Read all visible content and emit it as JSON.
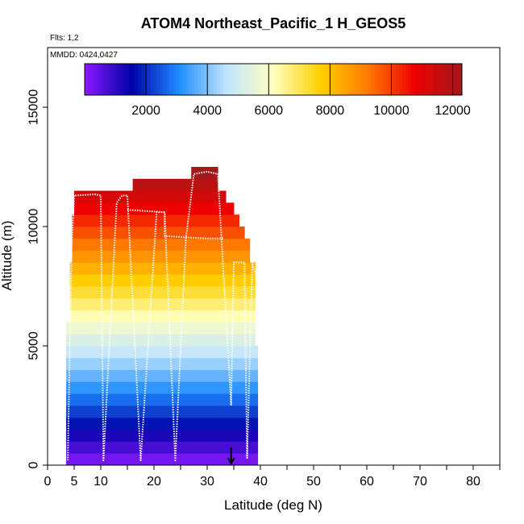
{
  "chart_data": {
    "type": "heatmap",
    "title": "ATOM4 Northeast_Pacific_1 H_GEOS5",
    "flights_label": "Flts: 1,2",
    "dates_label": "MMDD: 0424,0427",
    "xlabel": "Latitude (deg N)",
    "ylabel": "Altitude (m)",
    "xlim": [
      0,
      85
    ],
    "ylim": [
      0,
      17500
    ],
    "x_ticks": [
      0,
      5,
      10,
      20,
      30,
      40,
      50,
      60,
      70,
      80
    ],
    "x_tick_labels": [
      "0",
      "5",
      "10",
      "20",
      "30",
      "40",
      "50",
      "60",
      "70",
      "80"
    ],
    "y_ticks": [
      0,
      5000,
      10000,
      15000
    ],
    "y_tick_labels": [
      "0",
      "5000",
      "10000",
      "15000"
    ],
    "grid": false,
    "colorbar": {
      "min": 0,
      "max": 12300,
      "ticks": [
        2000,
        4000,
        6000,
        8000,
        10000,
        12000
      ],
      "tick_labels": [
        "2000",
        "4000",
        "6000",
        "8000",
        "10000",
        "12000"
      ],
      "stops": [
        "#8c1aff",
        "#0000a8",
        "#1e8cff",
        "#bfe5ff",
        "#ffffc0",
        "#ffd000",
        "#ff7a00",
        "#ee0000",
        "#9e1a1a"
      ]
    },
    "arrow_latitude": 34.5,
    "bin_height": 500,
    "columns": [
      {
        "x0": 3.5,
        "x1": 4.2,
        "top": 6000
      },
      {
        "x0": 4.2,
        "x1": 4.6,
        "top": 8500
      },
      {
        "x0": 4.6,
        "x1": 5.0,
        "top": 10500
      },
      {
        "x0": 5.0,
        "x1": 16.0,
        "top": 11500
      },
      {
        "x0": 16.0,
        "x1": 27.0,
        "top": 12000
      },
      {
        "x0": 27.0,
        "x1": 32.0,
        "top": 12500
      },
      {
        "x0": 32.0,
        "x1": 33.5,
        "top": 11500
      },
      {
        "x0": 33.5,
        "x1": 35.0,
        "top": 11000
      },
      {
        "x0": 35.0,
        "x1": 36.0,
        "top": 10500
      },
      {
        "x0": 36.0,
        "x1": 37.0,
        "top": 10000
      },
      {
        "x0": 37.0,
        "x1": 38.0,
        "top": 9500
      },
      {
        "x0": 38.0,
        "x1": 39.0,
        "top": 8500
      },
      {
        "x0": 39.0,
        "x1": 39.5,
        "top": 5000
      }
    ],
    "flight_track": [
      [
        3.8,
        200
      ],
      [
        4.5,
        9000
      ],
      [
        5.0,
        11300
      ],
      [
        9.0,
        11350
      ],
      [
        10.0,
        11300
      ],
      [
        10.5,
        200
      ],
      [
        13.0,
        11000
      ],
      [
        14.0,
        11300
      ],
      [
        15.0,
        11300
      ],
      [
        17.5,
        200
      ],
      [
        20.5,
        10600
      ],
      [
        21.0,
        10600
      ],
      [
        22.0,
        10600
      ],
      [
        24.0,
        200
      ],
      [
        26.0,
        9500
      ],
      [
        27.5,
        12200
      ],
      [
        30.0,
        12300
      ],
      [
        32.0,
        12200
      ],
      [
        34.5,
        2500
      ],
      [
        35.0,
        8500
      ],
      [
        37.0,
        8500
      ],
      [
        37.5,
        300
      ],
      [
        38.5,
        8500
      ],
      [
        39.0,
        8000
      ]
    ],
    "flight_track_2": [
      [
        15.0,
        10700
      ],
      [
        22.0,
        10600
      ],
      [
        22.0,
        9600
      ],
      [
        30.0,
        9500
      ],
      [
        33.0,
        9500
      ]
    ]
  }
}
